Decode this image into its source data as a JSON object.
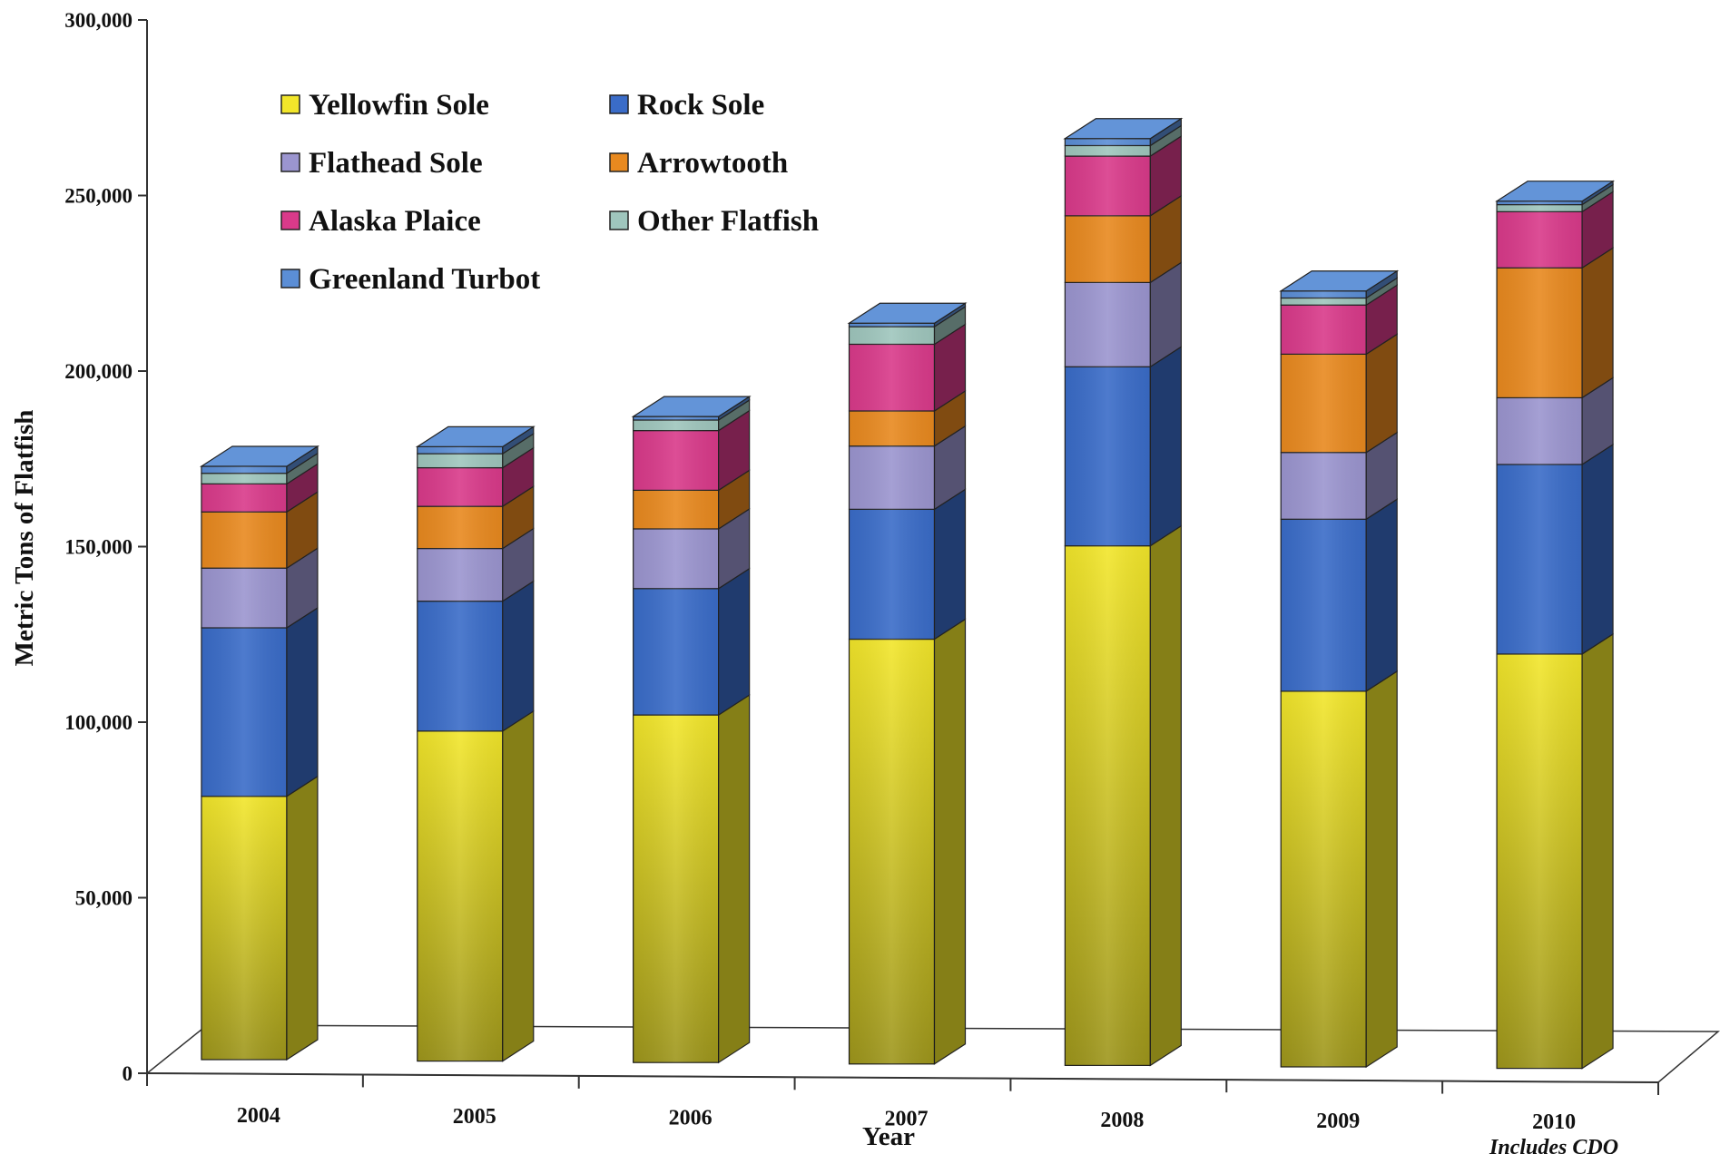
{
  "chart_data": {
    "type": "bar",
    "stacked": true,
    "three_d": true,
    "ylabel": "Metric Tons of Flatfish",
    "xlabel": "Year",
    "ylim": [
      0,
      300000
    ],
    "yticks": [
      "0",
      "50,000",
      "100,000",
      "150,000",
      "200,000",
      "250,000",
      "300,000"
    ],
    "categories": [
      "2004",
      "2005",
      "2006",
      "2007",
      "2008",
      "2009",
      "2010"
    ],
    "category_notes": [
      "",
      "",
      "",
      "",
      "",
      "",
      "Includes CDQ"
    ],
    "legend_position": "top-left",
    "grid": false,
    "series": [
      {
        "name": "Yellowfin Sole",
        "color": "#f2e62a",
        "values": [
          75000,
          94000,
          99000,
          121000,
          148000,
          107000,
          118000
        ]
      },
      {
        "name": "Rock Sole",
        "color": "#3a6cc8",
        "values": [
          48000,
          37000,
          36000,
          37000,
          51000,
          49000,
          54000
        ]
      },
      {
        "name": "Flathead Sole",
        "color": "#9b95cf",
        "values": [
          17000,
          15000,
          17000,
          18000,
          24000,
          19000,
          19000
        ]
      },
      {
        "name": "Arrowtooth",
        "color": "#e8891f",
        "values": [
          16000,
          12000,
          11000,
          10000,
          19000,
          28000,
          37000
        ]
      },
      {
        "name": "Alaska Plaice",
        "color": "#d93a8a",
        "values": [
          8000,
          11000,
          17000,
          19000,
          17000,
          14000,
          16000
        ]
      },
      {
        "name": "Other Flatfish",
        "color": "#9fc6bd",
        "values": [
          3000,
          4000,
          3000,
          5000,
          3000,
          2000,
          2000
        ]
      },
      {
        "name": "Greenland Turbot",
        "color": "#5b8ed6",
        "values": [
          2000,
          2000,
          1000,
          1000,
          2000,
          2000,
          1000
        ]
      }
    ]
  }
}
